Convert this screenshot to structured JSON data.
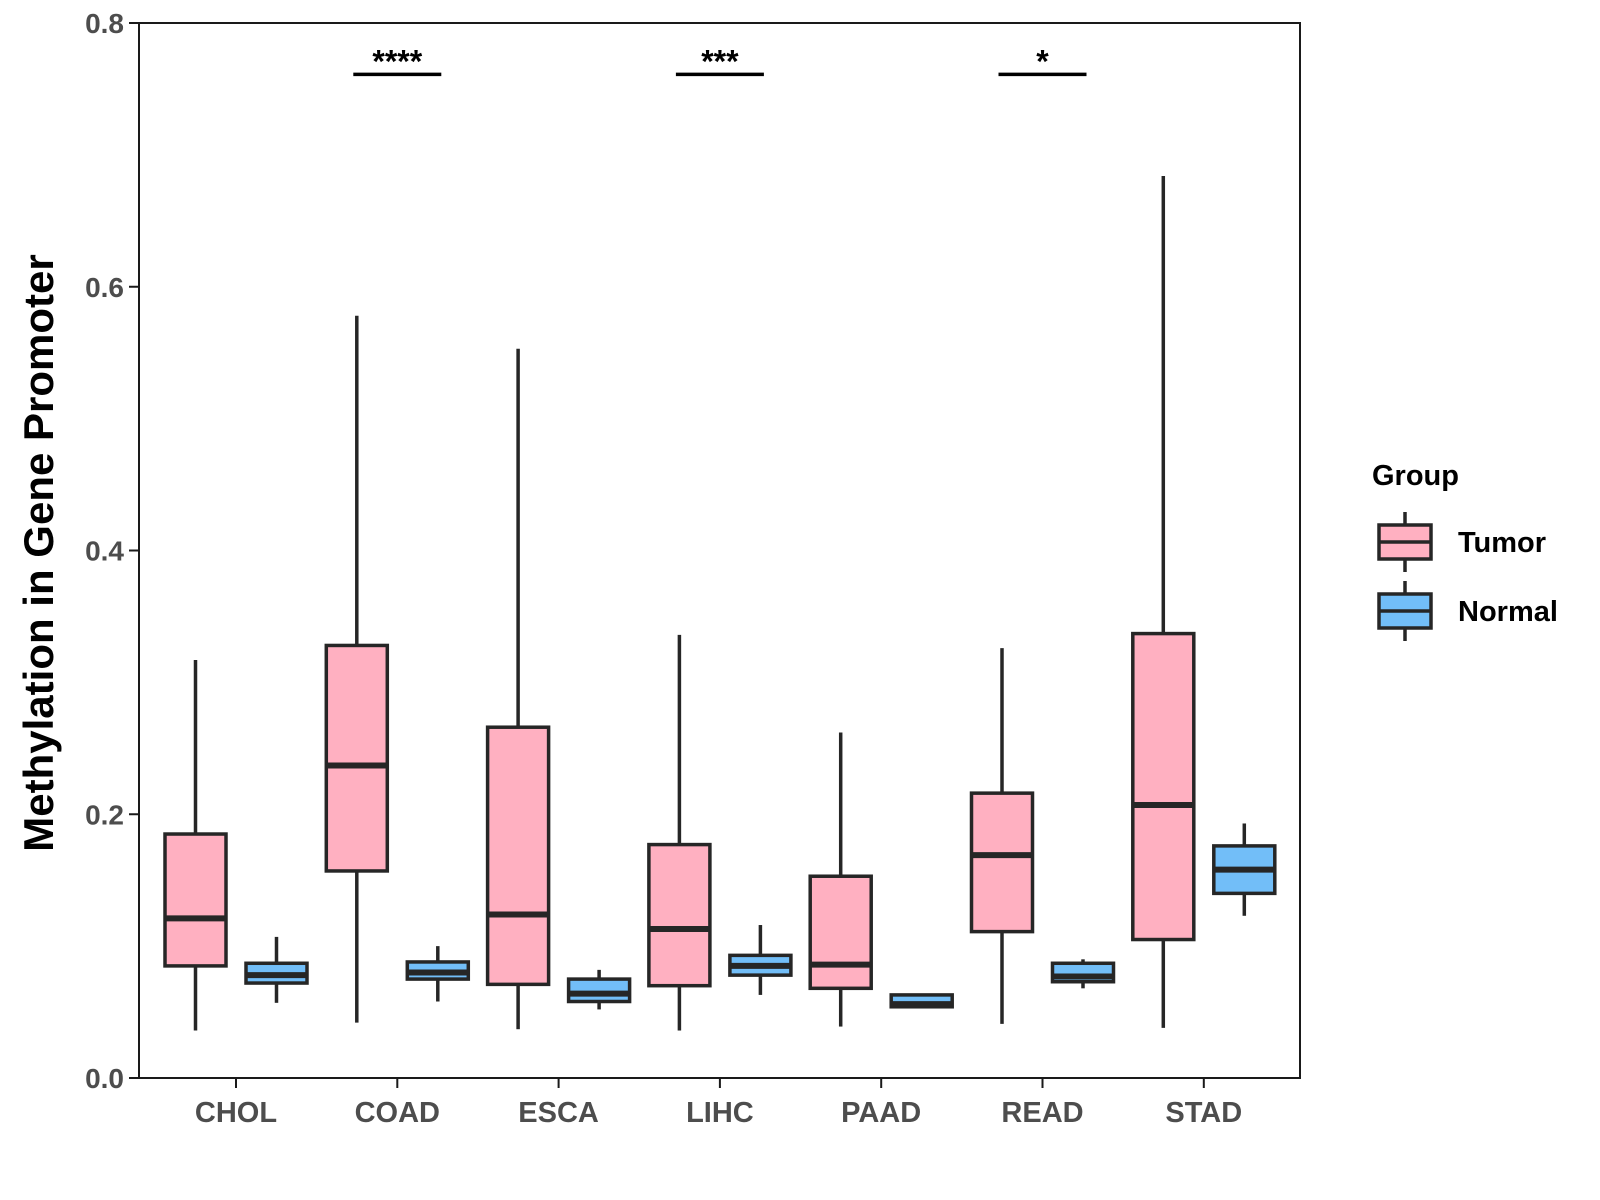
{
  "chart_data": {
    "type": "boxplot",
    "title": "",
    "xlabel": "",
    "ylabel": "Methylation in Gene Promoter",
    "ylim": [
      0,
      0.8
    ],
    "yticks": [
      0.0,
      0.2,
      0.4,
      0.6,
      0.8
    ],
    "ytick_labels": [
      "0.0",
      "0.2",
      "0.4",
      "0.6",
      "0.8"
    ],
    "categories": [
      "CHOL",
      "COAD",
      "ESCA",
      "LIHC",
      "PAAD",
      "READ",
      "STAD"
    ],
    "series": [
      {
        "name": "Tumor",
        "color": "#FFB0C1",
        "boxes": [
          {
            "min": 0.036,
            "q1": 0.085,
            "median": 0.121,
            "q3": 0.185,
            "max": 0.317
          },
          {
            "min": 0.042,
            "q1": 0.157,
            "median": 0.237,
            "q3": 0.328,
            "max": 0.578
          },
          {
            "min": 0.037,
            "q1": 0.071,
            "median": 0.124,
            "q3": 0.266,
            "max": 0.553
          },
          {
            "min": 0.036,
            "q1": 0.07,
            "median": 0.113,
            "q3": 0.177,
            "max": 0.336
          },
          {
            "min": 0.039,
            "q1": 0.068,
            "median": 0.086,
            "q3": 0.153,
            "max": 0.262
          },
          {
            "min": 0.041,
            "q1": 0.111,
            "median": 0.169,
            "q3": 0.216,
            "max": 0.326
          },
          {
            "min": 0.038,
            "q1": 0.105,
            "median": 0.207,
            "q3": 0.337,
            "max": 0.684
          }
        ]
      },
      {
        "name": "Normal",
        "color": "#72BEF8",
        "boxes": [
          {
            "min": 0.057,
            "q1": 0.072,
            "median": 0.078,
            "q3": 0.087,
            "max": 0.107
          },
          {
            "min": 0.058,
            "q1": 0.075,
            "median": 0.08,
            "q3": 0.088,
            "max": 0.1
          },
          {
            "min": 0.052,
            "q1": 0.058,
            "median": 0.064,
            "q3": 0.075,
            "max": 0.082
          },
          {
            "min": 0.063,
            "q1": 0.078,
            "median": 0.085,
            "q3": 0.093,
            "max": 0.116
          },
          {
            "min": 0.054,
            "q1": 0.054,
            "median": 0.056,
            "q3": 0.063,
            "max": 0.063
          },
          {
            "min": 0.068,
            "q1": 0.073,
            "median": 0.077,
            "q3": 0.087,
            "max": 0.09
          },
          {
            "min": 0.123,
            "q1": 0.14,
            "median": 0.158,
            "q3": 0.176,
            "max": 0.193
          }
        ]
      }
    ],
    "significance": [
      {
        "category": "COAD",
        "label": "****"
      },
      {
        "category": "LIHC",
        "label": "***"
      },
      {
        "category": "READ",
        "label": "*"
      }
    ],
    "legend": {
      "title": "Group",
      "position": "right",
      "entries": [
        "Tumor",
        "Normal"
      ]
    },
    "grid": false
  }
}
